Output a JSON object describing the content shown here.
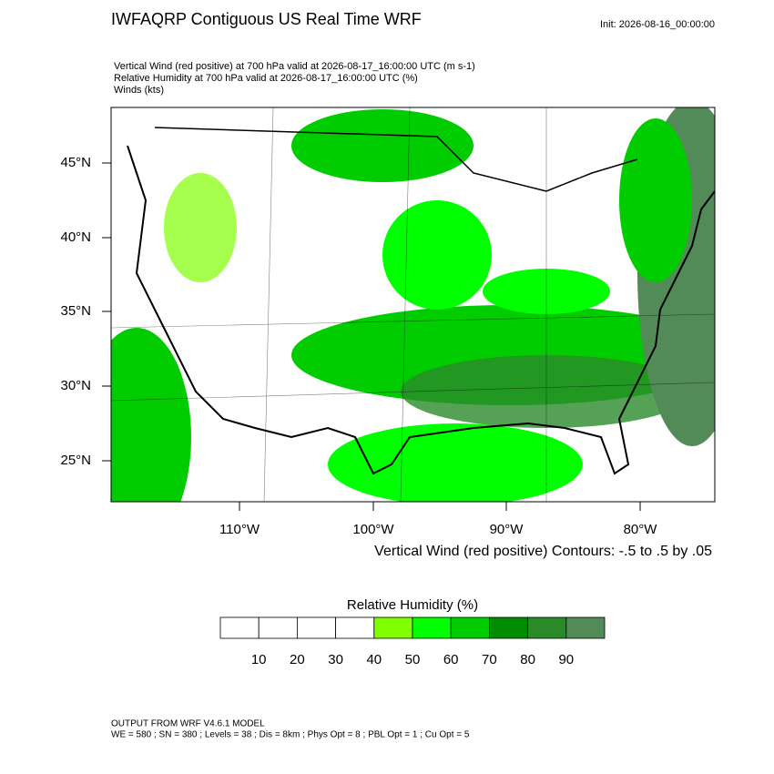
{
  "header": {
    "title": "IWFAQRP Contiguous US Real Time WRF",
    "init": "Init: 2026-08-16_00:00:00"
  },
  "fields": [
    "Vertical Wind (red positive) at 700 hPa valid at 2026-08-17_16:00:00 UTC   (m s-1)",
    "Relative Humidity at 700 hPa valid at 2026-08-17_16:00:00 UTC   (%)",
    "Winds   (kts)"
  ],
  "map": {
    "lat_labels": [
      "45°N",
      "40°N",
      "35°N",
      "30°N",
      "25°N"
    ],
    "lon_labels": [
      "110°W",
      "100°W",
      "90°W",
      "80°W"
    ],
    "contour_note": "Vertical Wind (red positive) Contours: -.5 to .5 by .05"
  },
  "colorbar": {
    "title": "Relative Humidity  (%)",
    "labels": [
      10,
      20,
      30,
      40,
      50,
      60,
      70,
      80,
      90
    ],
    "colors": [
      "#ffffff",
      "#ffffff",
      "#ffffff",
      "#ffffff",
      "#80ff00",
      "#00ff00",
      "#00cc00",
      "#008c00",
      "#2a8a2a",
      "#528a58"
    ]
  },
  "footer": [
    "OUTPUT FROM WRF V4.6.1 MODEL",
    "WE = 580 ; SN = 380 ; Levels = 38 ; Dis = 8km ; Phys Opt = 8 ; PBL Opt = 1 ; Cu Opt = 5"
  ]
}
